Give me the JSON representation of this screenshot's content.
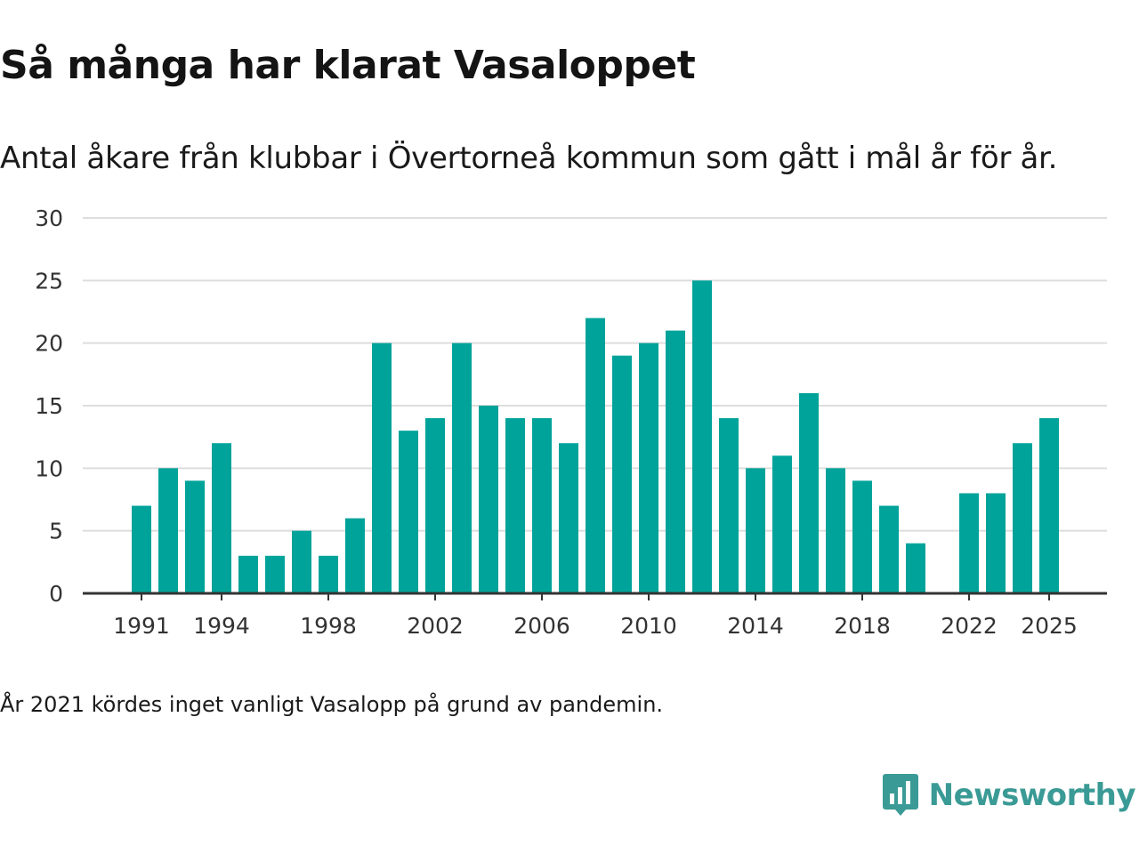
{
  "title": "Så många har klarat Vasaloppet",
  "subtitle": "Antal åkare från klubbar i Övertorneå kommun som gått i mål år för år.",
  "note": "År 2021 kördes inget vanligt Vasalopp på grund av pandemin.",
  "brand": {
    "name": "Newsworthy",
    "icon": "newsworthy-logo-icon"
  },
  "colors": {
    "bar": "#00a39a",
    "grid": "#dddddd",
    "axis": "#333333",
    "brand": "#3a9a95"
  },
  "chart_data": {
    "type": "bar",
    "title": "Så många har klarat Vasaloppet",
    "subtitle": "Antal åkare från klubbar i Övertorneå kommun som gått i mål år för år.",
    "xlabel": "",
    "ylabel": "",
    "ylim": [
      0,
      30
    ],
    "yticks": [
      0,
      5,
      10,
      15,
      20,
      25,
      30
    ],
    "xticks": [
      1991,
      1994,
      1998,
      2002,
      2006,
      2010,
      2014,
      2018,
      2022,
      2025
    ],
    "grid": true,
    "categories": [
      1991,
      1992,
      1993,
      1994,
      1995,
      1996,
      1997,
      1998,
      1999,
      2000,
      2001,
      2002,
      2003,
      2004,
      2005,
      2006,
      2007,
      2008,
      2009,
      2010,
      2011,
      2012,
      2013,
      2014,
      2015,
      2016,
      2017,
      2018,
      2019,
      2020,
      2021,
      2022,
      2023,
      2024,
      2025
    ],
    "values": [
      7,
      10,
      9,
      12,
      3,
      3,
      5,
      3,
      6,
      20,
      13,
      14,
      20,
      15,
      14,
      14,
      12,
      22,
      19,
      20,
      21,
      25,
      14,
      10,
      11,
      16,
      10,
      9,
      7,
      4,
      0,
      8,
      8,
      12,
      14
    ]
  }
}
